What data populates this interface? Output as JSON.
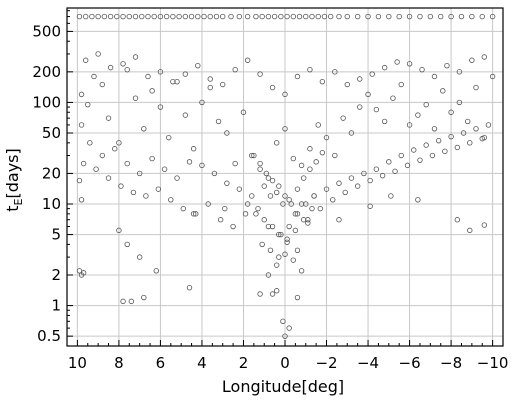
{
  "chart_data": {
    "type": "scatter",
    "title": "",
    "xlabel": "Longitude[deg]",
    "ylabel_main": "t",
    "ylabel_sub": "E",
    "ylabel_rest": "[days]",
    "x_reversed": true,
    "xlim": [
      10.5,
      -10.5
    ],
    "ylim": [
      0.4,
      850
    ],
    "y_scale": "log",
    "grid": true,
    "marker": "open-circle",
    "x_ticks": [
      {
        "value": 10,
        "label": "10"
      },
      {
        "value": 8,
        "label": "8"
      },
      {
        "value": 6,
        "label": "6"
      },
      {
        "value": 4,
        "label": "4"
      },
      {
        "value": 2,
        "label": "2"
      },
      {
        "value": 0,
        "label": "0"
      },
      {
        "value": -2,
        "label": "−2"
      },
      {
        "value": -4,
        "label": "−4"
      },
      {
        "value": -6,
        "label": "−6"
      },
      {
        "value": -8,
        "label": "−8"
      },
      {
        "value": -10,
        "label": "−10"
      }
    ],
    "y_ticks": [
      {
        "value": 0.5,
        "label": "0.5"
      },
      {
        "value": 1,
        "label": "1"
      },
      {
        "value": 2,
        "label": "2"
      },
      {
        "value": 5,
        "label": "5"
      },
      {
        "value": 10,
        "label": "10"
      },
      {
        "value": 20,
        "label": "20"
      },
      {
        "value": 50,
        "label": "50"
      },
      {
        "value": 100,
        "label": "100"
      },
      {
        "value": 200,
        "label": "200"
      },
      {
        "value": 500,
        "label": "500"
      }
    ],
    "series": [
      {
        "color": "#555555",
        "x": [
          9.9,
          9.6,
          9.3,
          9.0,
          8.7,
          8.4,
          8.1,
          7.8,
          7.5,
          7.2,
          6.9,
          6.6,
          6.3,
          6.0,
          5.7,
          5.4,
          5.1,
          4.8,
          4.5,
          4.2,
          3.9,
          3.6,
          3.3,
          3.0,
          2.6,
          2.2,
          1.8,
          1.4,
          1.1,
          0.8,
          0.5,
          0.2,
          -0.1,
          -0.4,
          -0.7,
          -1.0,
          -1.3,
          -1.6,
          -1.9,
          -2.2,
          -2.6,
          -3.0,
          -3.5,
          -4.0,
          -4.5,
          -5.0,
          -5.5,
          -6.0,
          -6.5,
          -7.0,
          -7.5,
          -8.0,
          -8.5,
          -9.0,
          -9.5,
          -10.0,
          9.8,
          9.5,
          9.8,
          9.2,
          8.8,
          8.5,
          8.0,
          7.6,
          7.2,
          6.8,
          6.4,
          6.0,
          5.6,
          5.2,
          4.8,
          4.4,
          4.0,
          3.6,
          3.2,
          2.8,
          2.4,
          2.0,
          1.6,
          1.2,
          0.8,
          0.4,
          0.0,
          -0.4,
          -0.8,
          -1.2,
          -1.6,
          -2.0,
          -2.4,
          -2.8,
          -3.2,
          -3.6,
          -4.0,
          -4.4,
          -4.8,
          -5.2,
          -5.6,
          -6.0,
          -6.4,
          -6.8,
          -7.2,
          -7.6,
          -8.0,
          -8.4,
          -8.8,
          -9.2,
          -9.6,
          -10.0,
          9.6,
          9.0,
          8.4,
          7.8,
          7.2,
          6.6,
          6.0,
          5.4,
          4.8,
          4.2,
          3.6,
          3.0,
          2.4,
          1.8,
          1.2,
          0.6,
          0.0,
          -0.6,
          -1.2,
          -1.8,
          -2.4,
          -3.0,
          -3.6,
          -4.2,
          -4.8,
          -5.4,
          -6.0,
          -6.6,
          -7.2,
          -7.8,
          -8.4,
          -9.0,
          -9.6,
          9.4,
          8.8,
          8.2,
          7.6,
          7.0,
          6.4,
          5.8,
          5.2,
          4.6,
          4.0,
          3.4,
          2.8,
          2.2,
          1.6,
          1.0,
          0.4,
          -0.2,
          -0.8,
          -1.4,
          -2.0,
          -2.6,
          -3.2,
          -3.8,
          -4.4,
          -5.0,
          -5.6,
          -6.2,
          -6.8,
          -7.4,
          -8.0,
          -8.6,
          -9.2,
          -9.8,
          9.7,
          9.1,
          8.5,
          7.9,
          7.3,
          6.7,
          6.1,
          5.5,
          4.9,
          4.3,
          3.7,
          3.1,
          2.5,
          1.9,
          1.3,
          0.7,
          0.1,
          -0.5,
          -1.1,
          -1.7,
          -2.3,
          -2.9,
          -3.5,
          -4.1,
          -4.7,
          -5.3,
          -5.9,
          -6.5,
          -7.1,
          -7.7,
          -8.3,
          -8.9,
          -9.5,
          1.5,
          1.2,
          0.9,
          0.6,
          0.3,
          0.0,
          -0.3,
          -0.6,
          -0.9,
          -1.2,
          -1.5,
          -1.8,
          1.4,
          1.0,
          0.6,
          0.2,
          -0.2,
          -0.6,
          -1.0,
          -1.4,
          1.1,
          0.7,
          0.3,
          -0.1,
          -0.5,
          -0.9,
          -1.3,
          0.8,
          0.4,
          0.0,
          -0.4,
          -0.8,
          9.9,
          9.8,
          8.0,
          7.6,
          7.0,
          6.2,
          4.4,
          2.9,
          1.8,
          0.8,
          0.3,
          -0.1,
          -0.6,
          -1.1,
          -2.6,
          -4.1,
          -5.1,
          -6.4,
          -8.3,
          -8.9,
          -9.6,
          7.8,
          7.4,
          6.8,
          0.0,
          0.1,
          -0.2,
          1.2,
          0.4,
          -0.6,
          9.7,
          9.9,
          9.8,
          4.6,
          0.6
        ],
        "y": [
          700,
          700,
          700,
          700,
          700,
          700,
          700,
          700,
          700,
          700,
          700,
          700,
          700,
          700,
          700,
          700,
          700,
          700,
          700,
          700,
          700,
          700,
          700,
          700,
          700,
          700,
          700,
          700,
          700,
          700,
          700,
          700,
          700,
          700,
          700,
          700,
          700,
          700,
          700,
          700,
          700,
          700,
          700,
          700,
          700,
          700,
          700,
          700,
          700,
          700,
          700,
          700,
          700,
          700,
          700,
          700,
          120,
          95,
          60,
          180,
          150,
          70,
          40,
          210,
          110,
          55,
          130,
          90,
          45,
          160,
          75,
          35,
          100,
          140,
          65,
          50,
          25,
          80,
          30,
          22,
          18,
          40,
          55,
          28,
          24,
          35,
          60,
          45,
          30,
          70,
          50,
          90,
          120,
          85,
          65,
          110,
          150,
          60,
          75,
          95,
          55,
          130,
          80,
          100,
          65,
          140,
          45,
          180,
          260,
          300,
          220,
          240,
          280,
          180,
          200,
          160,
          190,
          230,
          170,
          150,
          210,
          260,
          190,
          140,
          120,
          180,
          210,
          160,
          200,
          150,
          170,
          190,
          220,
          250,
          240,
          210,
          180,
          230,
          200,
          260,
          280,
          40,
          30,
          35,
          25,
          20,
          28,
          22,
          18,
          26,
          24,
          20,
          16,
          14,
          12,
          15,
          13,
          11,
          10,
          12,
          14,
          16,
          18,
          20,
          22,
          26,
          30,
          34,
          38,
          42,
          46,
          50,
          55,
          60,
          25,
          22,
          18,
          15,
          13,
          12,
          14,
          11,
          9,
          8,
          10,
          7,
          6,
          8,
          9,
          12,
          10,
          8,
          7,
          9,
          11,
          13,
          15,
          17,
          19,
          21,
          24,
          27,
          30,
          33,
          36,
          40,
          44,
          30,
          25,
          20,
          17,
          15,
          12,
          10,
          14,
          18,
          22,
          26,
          32,
          8,
          7,
          6,
          5,
          6,
          8,
          10,
          12,
          4,
          3.5,
          3,
          4.5,
          5.5,
          7,
          9,
          2,
          2.5,
          3.2,
          2.8,
          2.2,
          17,
          11,
          5.5,
          4,
          3,
          2.2,
          8,
          9,
          10,
          6,
          5,
          4.2,
          3.5,
          6.5,
          7,
          9.5,
          12,
          11,
          7,
          5.5,
          6.2,
          1.1,
          1.1,
          1.2,
          0.5,
          0.7,
          0.6,
          1.3,
          1.4,
          1.2,
          2.1,
          2.2,
          2.0,
          1.5,
          1.3
        ]
      }
    ]
  }
}
